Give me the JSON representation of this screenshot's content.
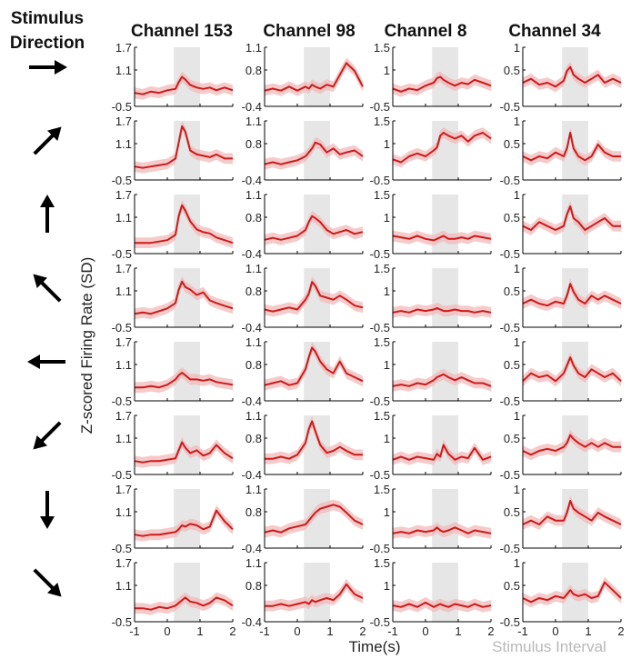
{
  "figure": {
    "stimulus_heading_line1": "Stimulus",
    "stimulus_heading_line2": "Direction",
    "y_axis_label": "Z-scored Firing Rate (SD)",
    "x_axis_label": "Time(s)",
    "legend_note": "Stimulus Interval",
    "directions": [
      "right-arrow-icon",
      "up-right-arrow-icon",
      "up-arrow-icon",
      "up-left-arrow-icon",
      "left-arrow-icon",
      "down-left-arrow-icon",
      "down-arrow-icon",
      "down-right-arrow-icon"
    ]
  },
  "chart_data": {
    "type": "line",
    "xlim": [
      -1,
      2
    ],
    "x_ticks": [
      "-1",
      "0",
      "1",
      "2"
    ],
    "stimulus_interval": [
      0.2,
      1.0
    ],
    "colors": {
      "line": "#cc1a1a",
      "band": "#f2b8b8",
      "shade": "#e6e6e6"
    },
    "channels": [
      {
        "name": "Channel 153",
        "ylim": [
          -0.5,
          1.7
        ],
        "y_ticks": [
          "1.7",
          "1.1",
          "-0.5"
        ],
        "x": [
          -1,
          -0.75,
          -0.5,
          -0.25,
          0,
          0.25,
          0.35,
          0.45,
          0.55,
          0.7,
          0.9,
          1.1,
          1.3,
          1.5,
          1.75,
          2
        ],
        "series": [
          {
            "direction": "right",
            "values": [
              0.0,
              -0.05,
              0.05,
              0.0,
              0.1,
              0.15,
              0.4,
              0.6,
              0.5,
              0.3,
              0.2,
              0.15,
              0.2,
              0.1,
              0.2,
              0.1
            ]
          },
          {
            "direction": "up-right",
            "values": [
              0.0,
              -0.05,
              0.0,
              0.05,
              0.1,
              0.3,
              0.9,
              1.5,
              1.3,
              0.6,
              0.45,
              0.4,
              0.35,
              0.45,
              0.3,
              0.3
            ]
          },
          {
            "direction": "up",
            "values": [
              -0.1,
              -0.1,
              -0.1,
              -0.05,
              0.0,
              0.2,
              0.9,
              1.3,
              1.1,
              0.7,
              0.4,
              0.3,
              0.25,
              0.1,
              0.0,
              -0.1
            ]
          },
          {
            "direction": "up-left",
            "values": [
              0.0,
              0.05,
              0.0,
              0.1,
              0.2,
              0.4,
              0.9,
              1.2,
              1.0,
              0.9,
              0.7,
              0.8,
              0.5,
              0.4,
              0.3,
              0.2
            ]
          },
          {
            "direction": "left",
            "values": [
              0.0,
              0.0,
              0.05,
              0.0,
              0.1,
              0.3,
              0.45,
              0.55,
              0.45,
              0.3,
              0.3,
              0.25,
              0.3,
              0.2,
              0.15,
              0.1
            ]
          },
          {
            "direction": "down-left",
            "values": [
              0.0,
              -0.05,
              0.0,
              0.0,
              0.05,
              0.1,
              0.4,
              0.7,
              0.5,
              0.3,
              0.4,
              0.2,
              0.3,
              0.6,
              0.3,
              0.1
            ]
          },
          {
            "direction": "down",
            "values": [
              0.0,
              -0.05,
              0.0,
              0.0,
              0.05,
              0.1,
              0.2,
              0.35,
              0.3,
              0.4,
              0.35,
              0.2,
              0.3,
              0.9,
              0.5,
              0.2
            ]
          },
          {
            "direction": "down-right",
            "values": [
              0.0,
              0.0,
              -0.05,
              0.05,
              0.0,
              0.1,
              0.2,
              0.3,
              0.4,
              0.25,
              0.2,
              0.1,
              0.2,
              0.4,
              0.3,
              0.1
            ]
          }
        ]
      },
      {
        "name": "Channel 98",
        "ylim": [
          -0.4,
          1.1
        ],
        "y_ticks": [
          "1.1",
          "0.8",
          "-0.4"
        ],
        "x": [
          -1,
          -0.75,
          -0.5,
          -0.25,
          0,
          0.25,
          0.35,
          0.45,
          0.55,
          0.7,
          0.9,
          1.1,
          1.3,
          1.5,
          1.75,
          2
        ],
        "series": [
          {
            "direction": "right",
            "values": [
              0.0,
              0.05,
              0.0,
              0.1,
              0.0,
              0.1,
              0.05,
              0.15,
              0.1,
              0.05,
              0.15,
              0.1,
              0.4,
              0.7,
              0.5,
              0.1
            ]
          },
          {
            "direction": "up-right",
            "values": [
              0.0,
              0.05,
              0.0,
              0.05,
              0.1,
              0.2,
              0.3,
              0.4,
              0.55,
              0.5,
              0.3,
              0.4,
              0.25,
              0.3,
              0.35,
              0.2
            ]
          },
          {
            "direction": "up",
            "values": [
              -0.05,
              0.0,
              -0.05,
              0.0,
              0.05,
              0.2,
              0.4,
              0.55,
              0.5,
              0.4,
              0.2,
              0.1,
              0.15,
              0.2,
              0.1,
              0.15
            ]
          },
          {
            "direction": "up-left",
            "values": [
              0.05,
              0.0,
              0.05,
              0.1,
              0.05,
              0.3,
              0.45,
              0.75,
              0.65,
              0.4,
              0.35,
              0.3,
              0.4,
              0.3,
              0.15,
              0.1
            ]
          },
          {
            "direction": "left",
            "values": [
              0.0,
              0.05,
              0.1,
              0.0,
              0.05,
              0.4,
              0.7,
              0.95,
              0.85,
              0.6,
              0.4,
              0.3,
              0.6,
              0.3,
              0.2,
              0.1
            ]
          },
          {
            "direction": "down-left",
            "values": [
              0.0,
              0.0,
              0.05,
              0.0,
              0.1,
              0.4,
              0.75,
              0.95,
              0.7,
              0.35,
              0.15,
              0.2,
              0.3,
              0.2,
              0.1,
              0.1
            ]
          },
          {
            "direction": "down",
            "values": [
              0.0,
              0.05,
              0.0,
              0.1,
              0.15,
              0.2,
              0.3,
              0.4,
              0.5,
              0.6,
              0.65,
              0.7,
              0.65,
              0.5,
              0.3,
              0.2
            ]
          },
          {
            "direction": "down-right",
            "values": [
              0.0,
              0.0,
              0.05,
              0.0,
              0.05,
              0.1,
              0.05,
              0.15,
              0.1,
              0.15,
              0.2,
              0.15,
              0.3,
              0.55,
              0.3,
              0.2
            ]
          }
        ]
      },
      {
        "name": "Channel 8",
        "ylim": [
          -0.5,
          1.5
        ],
        "y_ticks": [
          "1.5",
          "1",
          "-0.5"
        ],
        "x": [
          -1,
          -0.75,
          -0.5,
          -0.25,
          0,
          0.25,
          0.35,
          0.45,
          0.55,
          0.7,
          0.9,
          1.1,
          1.3,
          1.5,
          1.75,
          2
        ],
        "series": [
          {
            "direction": "right",
            "values": [
              0.1,
              0.0,
              0.1,
              0.05,
              0.2,
              0.3,
              0.45,
              0.5,
              0.4,
              0.3,
              0.2,
              0.3,
              0.25,
              0.4,
              0.3,
              0.2
            ]
          },
          {
            "direction": "up-right",
            "values": [
              0.2,
              0.1,
              0.3,
              0.4,
              0.3,
              0.5,
              0.6,
              1.0,
              1.1,
              1.0,
              0.9,
              1.0,
              0.8,
              1.0,
              1.1,
              0.9
            ]
          },
          {
            "direction": "up",
            "values": [
              0.1,
              0.05,
              0.0,
              0.1,
              0.0,
              -0.05,
              0.0,
              0.05,
              0.1,
              0.0,
              0.0,
              0.05,
              0.0,
              0.1,
              0.05,
              0.0
            ]
          },
          {
            "direction": "up-left",
            "values": [
              0.0,
              0.05,
              0.0,
              0.1,
              0.05,
              0.1,
              0.15,
              0.1,
              0.05,
              0.05,
              0.1,
              0.05,
              0.05,
              0.0,
              0.05,
              0.0
            ]
          },
          {
            "direction": "left",
            "values": [
              0.0,
              0.05,
              0.0,
              0.1,
              0.05,
              0.2,
              0.3,
              0.35,
              0.4,
              0.3,
              0.2,
              0.3,
              0.2,
              0.1,
              0.1,
              0.0
            ]
          },
          {
            "direction": "down-left",
            "values": [
              0.0,
              0.1,
              0.0,
              0.1,
              0.05,
              0.0,
              0.2,
              0.1,
              0.5,
              0.2,
              0.0,
              0.1,
              0.05,
              0.4,
              0.0,
              0.1
            ]
          },
          {
            "direction": "down",
            "values": [
              0.0,
              0.05,
              0.0,
              0.1,
              0.05,
              0.1,
              0.2,
              0.1,
              0.05,
              0.1,
              0.2,
              0.1,
              0.0,
              0.1,
              0.05,
              0.0
            ]
          },
          {
            "direction": "down-right",
            "values": [
              0.05,
              0.0,
              0.1,
              0.0,
              0.15,
              0.0,
              0.05,
              0.1,
              0.05,
              0.0,
              0.1,
              0.05,
              0.0,
              0.1,
              0.0,
              0.05
            ]
          }
        ]
      },
      {
        "name": "Channel 34",
        "ylim": [
          -0.5,
          1
        ],
        "y_ticks": [
          "1",
          "0.5",
          "-0.5"
        ],
        "x": [
          -1,
          -0.75,
          -0.5,
          -0.25,
          0,
          0.25,
          0.35,
          0.45,
          0.55,
          0.7,
          0.9,
          1.1,
          1.3,
          1.5,
          1.75,
          2
        ],
        "series": [
          {
            "direction": "right",
            "values": [
              0.1,
              0.2,
              0.05,
              0.1,
              0.0,
              0.15,
              0.4,
              0.5,
              0.3,
              0.2,
              0.1,
              0.2,
              0.3,
              0.1,
              0.2,
              0.1
            ]
          },
          {
            "direction": "up-right",
            "values": [
              0.1,
              0.0,
              0.1,
              0.05,
              0.2,
              0.1,
              0.3,
              0.7,
              0.3,
              0.1,
              0.0,
              0.1,
              0.4,
              0.2,
              0.1,
              0.1
            ]
          },
          {
            "direction": "up",
            "values": [
              0.2,
              0.1,
              0.3,
              0.2,
              0.1,
              0.2,
              0.5,
              0.7,
              0.4,
              0.3,
              0.1,
              0.2,
              0.3,
              0.4,
              0.2,
              0.2
            ]
          },
          {
            "direction": "up-left",
            "values": [
              0.1,
              0.2,
              0.1,
              0.05,
              0.15,
              0.1,
              0.3,
              0.6,
              0.4,
              0.2,
              0.1,
              0.3,
              0.2,
              0.3,
              0.2,
              0.1
            ]
          },
          {
            "direction": "left",
            "values": [
              0.0,
              0.2,
              0.1,
              0.15,
              0.0,
              0.2,
              0.4,
              0.6,
              0.4,
              0.2,
              0.1,
              0.3,
              0.2,
              0.1,
              0.2,
              0.0
            ]
          },
          {
            "direction": "down-left",
            "values": [
              0.1,
              0.0,
              0.1,
              0.15,
              0.1,
              0.2,
              0.3,
              0.5,
              0.4,
              0.3,
              0.2,
              0.3,
              0.2,
              0.3,
              0.2,
              0.2
            ]
          },
          {
            "direction": "down",
            "values": [
              0.1,
              0.2,
              0.1,
              0.3,
              0.2,
              0.2,
              0.4,
              0.7,
              0.5,
              0.4,
              0.3,
              0.2,
              0.4,
              0.3,
              0.2,
              0.1
            ]
          },
          {
            "direction": "down-right",
            "values": [
              0.1,
              0.0,
              0.1,
              0.05,
              0.15,
              0.1,
              0.2,
              0.3,
              0.2,
              0.15,
              0.2,
              0.1,
              0.15,
              0.5,
              0.3,
              0.1
            ]
          }
        ]
      }
    ]
  }
}
